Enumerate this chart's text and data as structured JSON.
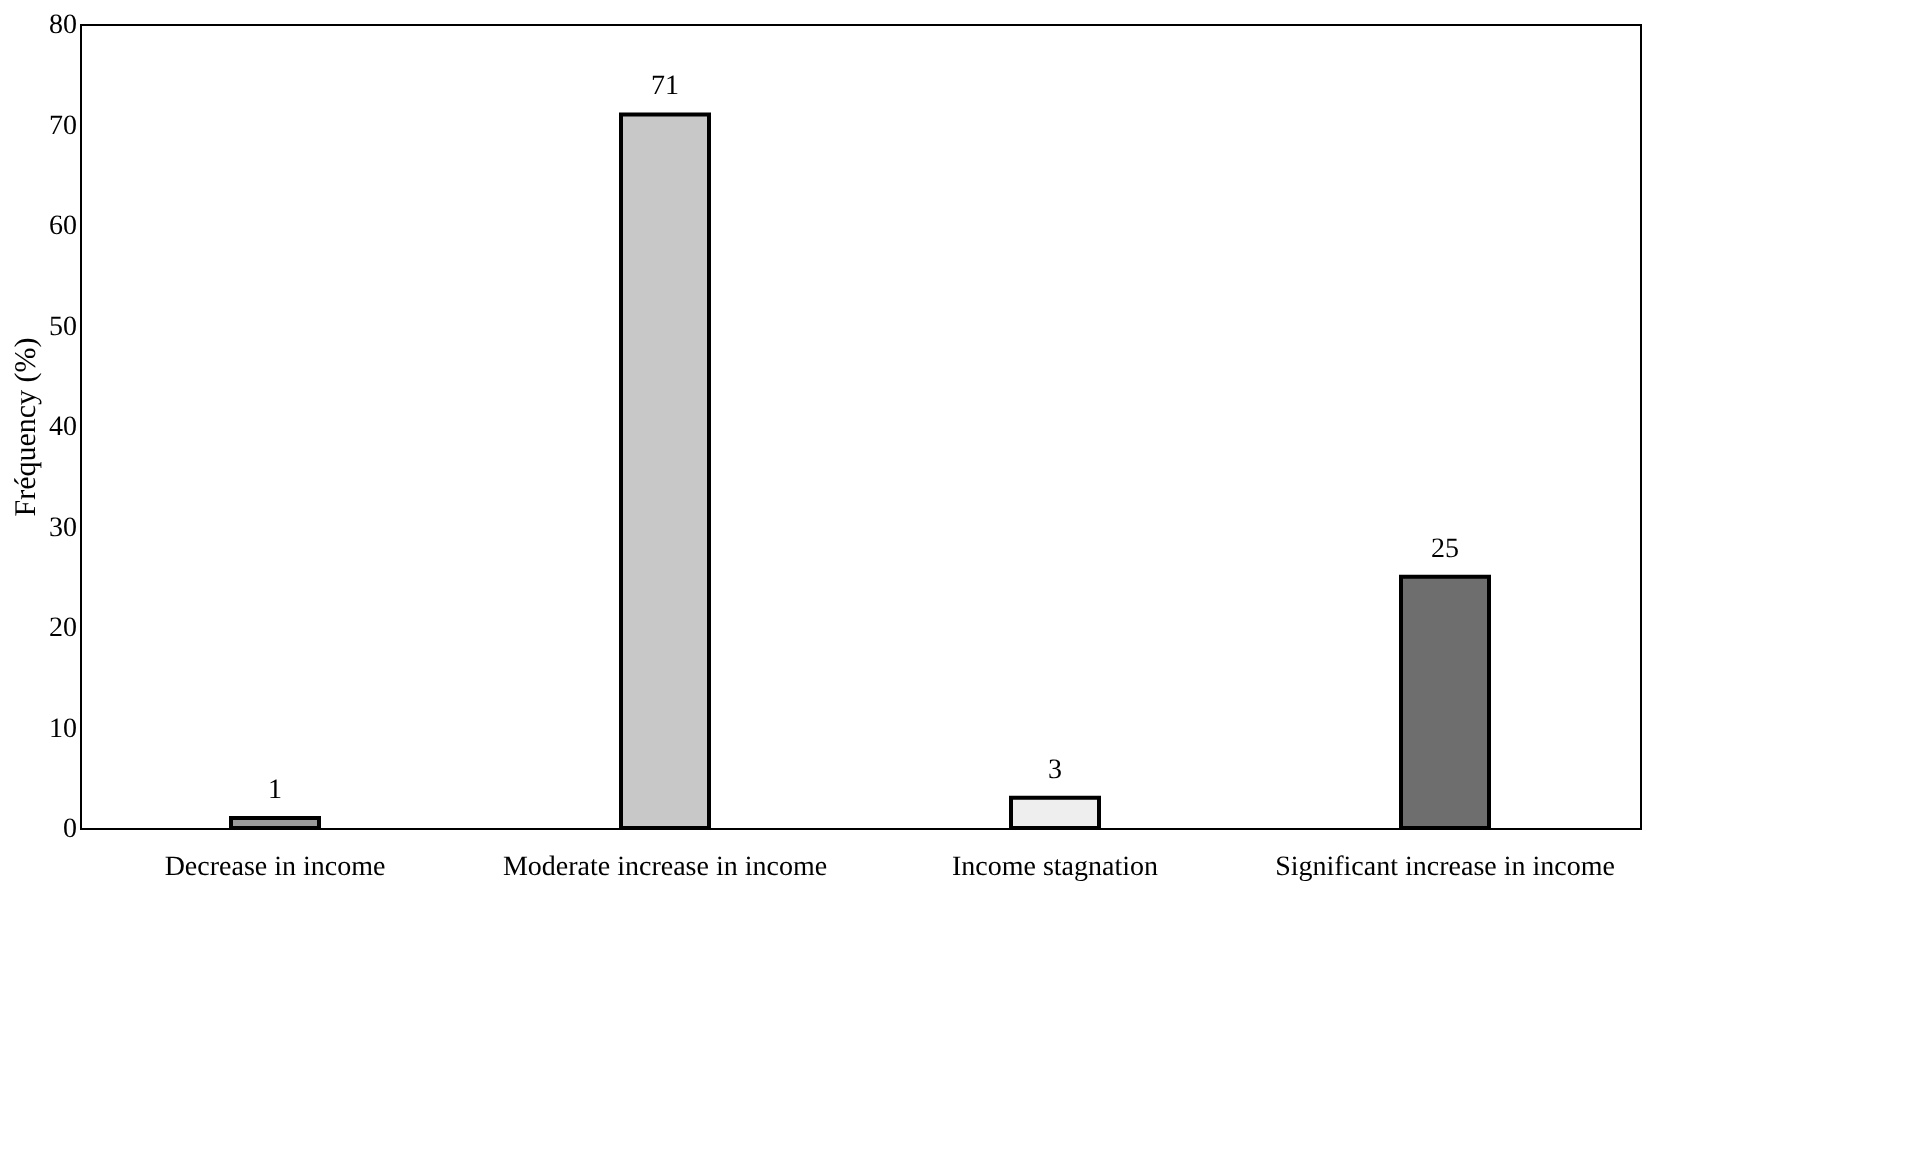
{
  "chart_data": {
    "type": "bar",
    "categories": [
      "Decrease in income",
      "Moderate increase in income",
      "Income stagnation",
      "Significant increase in income"
    ],
    "values": [
      1,
      71,
      3,
      25
    ],
    "colors": [
      "#999999",
      "#c8c8c8",
      "#eeeeee",
      "#6e6e6e"
    ],
    "ylabel": "Fréquency (%)",
    "ylim": [
      0,
      80
    ],
    "yticks": [
      0,
      10,
      20,
      30,
      40,
      50,
      60,
      70,
      80
    ],
    "grid": false,
    "data_labels": true
  }
}
